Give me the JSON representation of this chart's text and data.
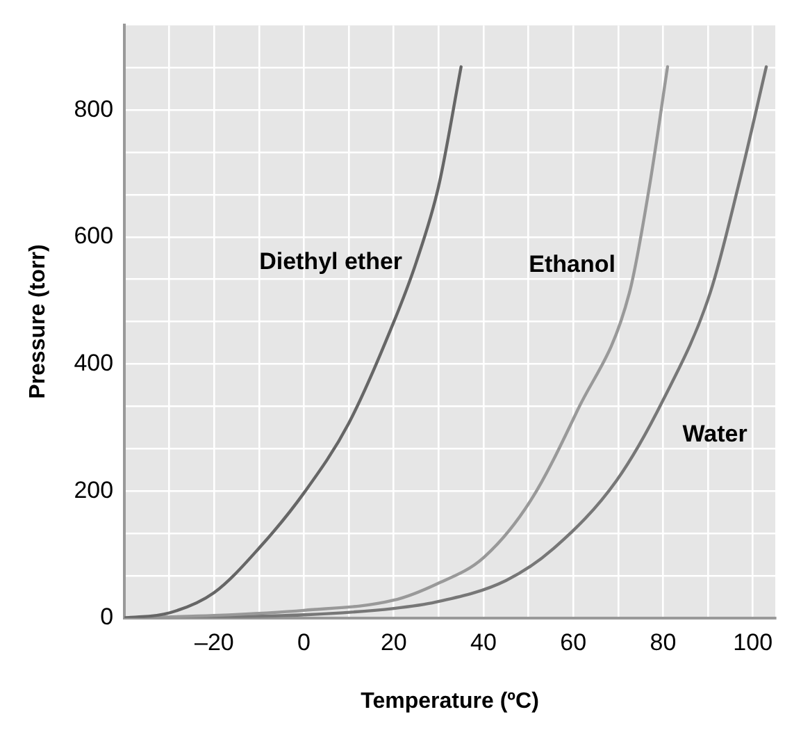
{
  "chart_data": {
    "type": "line",
    "xlabel": "Temperature (ºC)",
    "ylabel": "Pressure (torr)",
    "xlim": [
      -40,
      105
    ],
    "ylim": [
      0,
      933.3
    ],
    "xticks": [
      {
        "value": -30,
        "label": null
      },
      {
        "value": -20,
        "label": "–20"
      },
      {
        "value": -10,
        "label": null
      },
      0,
      {
        "value": 10,
        "label": null
      },
      20,
      {
        "value": 30,
        "label": null
      },
      40,
      {
        "value": 50,
        "label": null
      },
      60,
      {
        "value": 70,
        "label": null
      },
      80,
      {
        "value": 90,
        "label": null
      },
      100
    ],
    "yticks": [
      0,
      {
        "value": 66.7,
        "label": null
      },
      {
        "value": 133.3,
        "label": null
      },
      200,
      {
        "value": 266.7,
        "label": null
      },
      {
        "value": 333.3,
        "label": null
      },
      400,
      {
        "value": 466.7,
        "label": null
      },
      {
        "value": 533.3,
        "label": null
      },
      600,
      {
        "value": 666.7,
        "label": null
      },
      {
        "value": 733.3,
        "label": null
      },
      800,
      {
        "value": 866.7,
        "label": null
      }
    ],
    "grid": true,
    "legend": false,
    "marker": "none",
    "line_style": "solid",
    "series": [
      {
        "name": "Diethyl ether",
        "color": "#666666",
        "x": [
          -40,
          -30,
          -20,
          -10,
          0,
          10,
          20,
          25,
          30,
          35
        ],
        "values": [
          0,
          8,
          40,
          110,
          197,
          307,
          466,
          560,
          680,
          868
        ]
      },
      {
        "name": "Ethanol",
        "color": "#999999",
        "x": [
          -40,
          -20,
          0,
          20,
          29.4,
          40,
          50.6,
          61,
          72.5,
          77,
          81
        ],
        "values": [
          0,
          4,
          12,
          28,
          53,
          95,
          186,
          328,
          512,
          681,
          868
        ]
      },
      {
        "name": "Water",
        "color": "#777777",
        "x": [
          -40,
          0,
          20,
          29.4,
          45,
          55.7,
          69.6,
          80,
          90.5,
          96.8,
          103
        ],
        "values": [
          0,
          5,
          15,
          25,
          59,
          110,
          216,
          343,
          512,
          681,
          868
        ]
      }
    ]
  }
}
